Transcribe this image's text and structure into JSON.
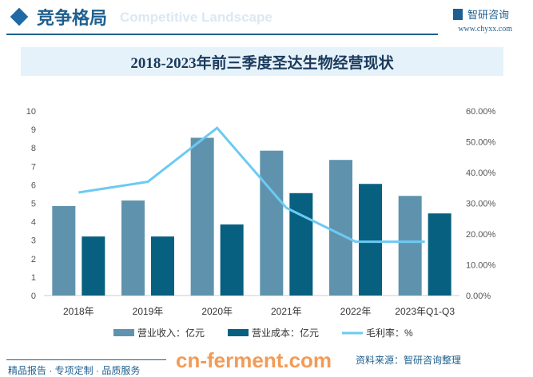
{
  "header": {
    "title": "竞争格局",
    "subtitle": "Competitive Landscape",
    "logo": "智研咨询",
    "url": "www.chyxx.com"
  },
  "chart_data": {
    "type": "bar",
    "title": "2018-2023年前三季度圣达生物经营现状",
    "categories": [
      "2018年",
      "2019年",
      "2020年",
      "2021年",
      "2022年",
      "2023年Q1-Q3"
    ],
    "series": [
      {
        "name": "营业收入：亿元",
        "type": "bar",
        "axis": "left",
        "color": "#5f93ad",
        "values": [
          4.85,
          5.15,
          8.55,
          7.85,
          7.35,
          5.4
        ]
      },
      {
        "name": "营业成本：亿元",
        "type": "bar",
        "axis": "left",
        "color": "#07607f",
        "values": [
          3.2,
          3.2,
          3.85,
          5.55,
          6.05,
          4.45
        ]
      },
      {
        "name": "毛利率：%",
        "type": "line",
        "axis": "right",
        "color": "#6ccaf2",
        "values": [
          33.5,
          37,
          54.5,
          28.5,
          17.5,
          17.5
        ]
      }
    ],
    "ylim": [
      0,
      10
    ],
    "yticks": [
      "0",
      "1",
      "2",
      "3",
      "4",
      "5",
      "6",
      "7",
      "8",
      "9",
      "10"
    ],
    "y2lim": [
      0,
      60
    ],
    "y2ticks": [
      "0.00%",
      "10.00%",
      "20.00%",
      "30.00%",
      "40.00%",
      "50.00%",
      "60.00%"
    ],
    "legend": "bottom"
  },
  "footer": {
    "tagline": "精品报告 · 专项定制 · 品质服务",
    "source": "资料来源：智研咨询整理",
    "watermark": "cn-ferment.com"
  }
}
